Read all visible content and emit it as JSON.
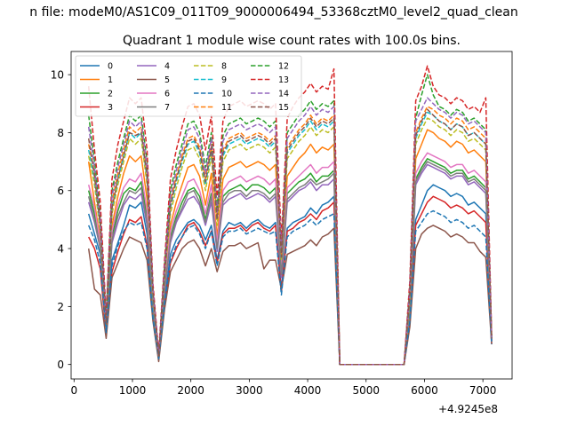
{
  "chart_data": {
    "type": "line",
    "suptitle": "n file: modeM0/AS1C09_011T09_9000006494_53368cztM0_level2_quad_clean",
    "title": "Quadrant 1 module wise count rates with 100.0s bins.",
    "xlabel": "",
    "ylabel": "",
    "x_offset_label": "+4.9245e8",
    "xlim": [
      -50,
      7500
    ],
    "ylim": [
      -0.5,
      10.8
    ],
    "xticks": [
      0,
      1000,
      2000,
      3000,
      4000,
      5000,
      6000,
      7000
    ],
    "yticks": [
      0,
      2,
      4,
      6,
      8,
      10
    ],
    "grid": false,
    "legend_position": "upper-left",
    "legend_columns": 4,
    "x": [
      250,
      350,
      450,
      550,
      650,
      750,
      850,
      950,
      1050,
      1150,
      1250,
      1350,
      1450,
      1550,
      1650,
      1750,
      1850,
      1950,
      2050,
      2150,
      2250,
      2350,
      2450,
      2550,
      2650,
      2750,
      2850,
      2950,
      3050,
      3150,
      3250,
      3350,
      3450,
      3550,
      3650,
      3750,
      3850,
      3950,
      4050,
      4150,
      4250,
      4350,
      4450,
      4550,
      4650,
      4750,
      4850,
      4950,
      5050,
      5150,
      5250,
      5350,
      5450,
      5550,
      5650,
      5750,
      5850,
      5950,
      6050,
      6150,
      6250,
      6350,
      6450,
      6550,
      6650,
      6750,
      6850,
      6950,
      7050,
      7150
    ],
    "series": [
      {
        "name": "0",
        "color": "#1f77b4",
        "style": "solid",
        "values": [
          5.2,
          4.5,
          3.8,
          1.2,
          3.6,
          4.2,
          4.8,
          5.5,
          5.4,
          5.6,
          4.5,
          1.8,
          0.2,
          2.2,
          3.8,
          4.3,
          4.6,
          4.9,
          5.0,
          4.8,
          4.3,
          4.8,
          3.6,
          4.6,
          4.9,
          4.8,
          4.9,
          4.7,
          4.9,
          5.0,
          4.8,
          4.7,
          4.9,
          2.6,
          4.7,
          4.9,
          5.0,
          5.1,
          5.4,
          5.2,
          5.5,
          5.6,
          5.8,
          0,
          0,
          0,
          0,
          0,
          0,
          0,
          0,
          0,
          0,
          0,
          0,
          1.6,
          5.0,
          5.5,
          6.0,
          6.2,
          6.1,
          6.0,
          5.8,
          5.9,
          5.8,
          5.5,
          5.6,
          5.4,
          5.2,
          0.8
        ]
      },
      {
        "name": "1",
        "color": "#ff7f0e",
        "style": "solid",
        "values": [
          7.0,
          5.6,
          4.3,
          1.3,
          4.8,
          5.8,
          6.6,
          7.2,
          7.0,
          7.2,
          5.7,
          2.2,
          0.3,
          2.8,
          4.8,
          5.6,
          6.2,
          6.8,
          6.9,
          6.5,
          5.5,
          6.6,
          4.4,
          6.4,
          6.8,
          6.9,
          7.0,
          6.8,
          6.9,
          7.0,
          6.9,
          6.7,
          6.9,
          3.3,
          6.5,
          6.8,
          7.1,
          7.3,
          7.6,
          7.3,
          7.5,
          7.4,
          7.6,
          0,
          0,
          0,
          0,
          0,
          0,
          0,
          0,
          0,
          0,
          0,
          0,
          2.2,
          7.1,
          7.6,
          8.1,
          8.0,
          7.8,
          7.7,
          7.5,
          7.7,
          7.6,
          7.3,
          7.4,
          7.2,
          7.0,
          0.9
        ]
      },
      {
        "name": "2",
        "color": "#2ca02c",
        "style": "solid",
        "values": [
          6.0,
          5.2,
          4.0,
          1.2,
          4.4,
          5.3,
          5.9,
          6.1,
          6.0,
          6.3,
          5.1,
          2.0,
          0.2,
          2.6,
          4.4,
          5.1,
          5.6,
          6.0,
          6.1,
          5.8,
          5.0,
          5.9,
          4.1,
          5.8,
          6.0,
          6.1,
          6.2,
          6.0,
          6.2,
          6.2,
          6.1,
          5.9,
          6.1,
          3.1,
          5.9,
          6.1,
          6.3,
          6.4,
          6.6,
          6.3,
          6.5,
          6.5,
          6.7,
          0,
          0,
          0,
          0,
          0,
          0,
          0,
          0,
          0,
          0,
          0,
          0,
          1.9,
          6.4,
          6.8,
          7.1,
          7.0,
          6.9,
          6.8,
          6.6,
          6.7,
          6.7,
          6.4,
          6.5,
          6.3,
          6.1,
          0.8
        ]
      },
      {
        "name": "3",
        "color": "#d62728",
        "style": "solid",
        "values": [
          4.4,
          4.0,
          3.3,
          1.0,
          3.2,
          3.9,
          4.5,
          5.0,
          4.9,
          5.1,
          4.1,
          1.6,
          0.2,
          2.0,
          3.5,
          4.0,
          4.4,
          4.8,
          4.9,
          4.6,
          4.1,
          4.6,
          3.5,
          4.5,
          4.7,
          4.7,
          4.8,
          4.6,
          4.8,
          4.9,
          4.7,
          4.6,
          4.8,
          2.5,
          4.6,
          4.7,
          4.9,
          5.0,
          5.2,
          5.0,
          5.3,
          5.4,
          5.6,
          0,
          0,
          0,
          0,
          0,
          0,
          0,
          0,
          0,
          0,
          0,
          0,
          1.5,
          4.8,
          5.2,
          5.6,
          5.8,
          5.7,
          5.6,
          5.4,
          5.5,
          5.4,
          5.2,
          5.3,
          5.1,
          4.9,
          0.7
        ]
      },
      {
        "name": "4",
        "color": "#9467bd",
        "style": "solid",
        "values": [
          5.6,
          4.9,
          4.0,
          1.2,
          4.2,
          4.9,
          5.5,
          5.8,
          5.7,
          5.9,
          4.8,
          1.9,
          0.2,
          2.5,
          4.2,
          4.9,
          5.3,
          5.7,
          5.8,
          5.5,
          4.8,
          5.6,
          3.9,
          5.5,
          5.7,
          5.8,
          5.9,
          5.7,
          5.8,
          5.9,
          5.8,
          5.6,
          5.8,
          3.0,
          5.6,
          5.8,
          6.0,
          6.1,
          6.3,
          6.0,
          6.2,
          6.2,
          6.4,
          0,
          0,
          0,
          0,
          0,
          0,
          0,
          0,
          0,
          0,
          0,
          0,
          1.8,
          6.2,
          6.6,
          6.9,
          6.8,
          6.7,
          6.6,
          6.4,
          6.5,
          6.5,
          6.2,
          6.3,
          6.1,
          5.9,
          0.8
        ]
      },
      {
        "name": "5",
        "color": "#8c564b",
        "style": "solid",
        "values": [
          4.0,
          2.6,
          2.4,
          0.9,
          3.0,
          3.5,
          4.0,
          4.4,
          4.3,
          4.2,
          3.6,
          1.5,
          0.1,
          1.9,
          3.2,
          3.6,
          4.0,
          4.2,
          4.3,
          4.0,
          3.4,
          4.0,
          3.2,
          3.9,
          4.1,
          4.1,
          4.2,
          4.0,
          4.1,
          4.2,
          3.3,
          3.6,
          3.6,
          2.6,
          3.8,
          3.9,
          4.0,
          4.1,
          4.3,
          4.1,
          4.4,
          4.5,
          4.7,
          0,
          0,
          0,
          0,
          0,
          0,
          0,
          0,
          0,
          0,
          0,
          0,
          1.3,
          4.0,
          4.5,
          4.7,
          4.8,
          4.7,
          4.6,
          4.4,
          4.5,
          4.4,
          4.2,
          4.2,
          3.9,
          3.7,
          0.7
        ]
      },
      {
        "name": "6",
        "color": "#e377c2",
        "style": "solid",
        "values": [
          6.2,
          5.4,
          4.2,
          1.2,
          4.6,
          5.5,
          6.1,
          6.4,
          6.3,
          6.6,
          5.3,
          2.0,
          0.3,
          2.7,
          4.6,
          5.3,
          5.8,
          6.3,
          6.4,
          6.0,
          5.2,
          6.2,
          4.2,
          6.0,
          6.3,
          6.4,
          6.5,
          6.3,
          6.4,
          6.5,
          6.4,
          6.2,
          6.4,
          3.2,
          6.1,
          6.3,
          6.5,
          6.7,
          6.9,
          6.6,
          6.8,
          6.8,
          7.0,
          0,
          0,
          0,
          0,
          0,
          0,
          0,
          0,
          0,
          0,
          0,
          0,
          2.0,
          6.6,
          7.0,
          7.3,
          7.2,
          7.1,
          7.0,
          6.8,
          6.9,
          6.9,
          6.6,
          6.7,
          6.5,
          6.3,
          0.8
        ]
      },
      {
        "name": "7",
        "color": "#7f7f7f",
        "style": "solid",
        "values": [
          5.8,
          5.0,
          4.0,
          1.2,
          4.3,
          5.1,
          5.6,
          6.0,
          5.9,
          6.1,
          4.9,
          1.9,
          0.2,
          2.6,
          4.3,
          5.0,
          5.4,
          5.9,
          6.0,
          5.6,
          4.9,
          5.8,
          4.0,
          5.6,
          5.9,
          6.0,
          6.0,
          5.8,
          6.0,
          6.0,
          5.9,
          5.7,
          5.9,
          3.1,
          5.7,
          5.9,
          6.1,
          6.2,
          6.4,
          6.2,
          6.3,
          6.4,
          6.6,
          0,
          0,
          0,
          0,
          0,
          0,
          0,
          0,
          0,
          0,
          0,
          0,
          1.9,
          6.3,
          6.7,
          7.0,
          6.9,
          6.8,
          6.7,
          6.5,
          6.6,
          6.6,
          6.3,
          6.4,
          6.2,
          6.0,
          0.8
        ]
      },
      {
        "name": "8",
        "color": "#bcbd22",
        "style": "dashed",
        "values": [
          7.2,
          6.2,
          4.6,
          1.4,
          5.2,
          6.2,
          7.0,
          7.8,
          7.6,
          7.8,
          6.2,
          2.4,
          0.3,
          3.0,
          5.2,
          6.1,
          6.8,
          7.4,
          7.5,
          7.1,
          6.0,
          7.2,
          4.8,
          7.0,
          7.4,
          7.5,
          7.6,
          7.4,
          7.5,
          7.6,
          7.5,
          7.3,
          7.5,
          3.6,
          7.1,
          7.4,
          7.7,
          7.9,
          8.2,
          7.9,
          8.1,
          8.0,
          8.2,
          0,
          0,
          0,
          0,
          0,
          0,
          0,
          0,
          0,
          0,
          0,
          0,
          2.3,
          7.6,
          8.1,
          8.5,
          8.4,
          8.2,
          8.1,
          7.9,
          8.1,
          8.0,
          7.7,
          7.8,
          7.6,
          7.4,
          0.9
        ]
      },
      {
        "name": "9",
        "color": "#17becf",
        "style": "dashed",
        "values": [
          7.4,
          6.4,
          4.8,
          1.4,
          5.4,
          6.4,
          7.2,
          8.0,
          7.8,
          8.0,
          6.4,
          2.4,
          0.3,
          3.1,
          5.4,
          6.3,
          7.0,
          7.6,
          7.7,
          7.3,
          6.2,
          7.4,
          5.0,
          7.2,
          7.6,
          7.7,
          7.8,
          7.6,
          7.7,
          7.8,
          7.7,
          7.5,
          7.7,
          3.7,
          7.3,
          7.6,
          7.9,
          8.1,
          8.4,
          8.1,
          8.3,
          8.2,
          8.4,
          0,
          0,
          0,
          0,
          0,
          0,
          0,
          0,
          0,
          0,
          0,
          0,
          2.4,
          7.8,
          8.3,
          8.7,
          8.6,
          8.4,
          8.3,
          8.1,
          8.3,
          8.2,
          7.9,
          8.0,
          7.8,
          7.6,
          0.9
        ]
      },
      {
        "name": "10",
        "color": "#1f77b4",
        "style": "dashed",
        "values": [
          4.8,
          4.3,
          3.5,
          1.1,
          3.4,
          4.1,
          4.6,
          4.9,
          4.8,
          4.9,
          4.0,
          1.6,
          0.2,
          2.1,
          3.6,
          4.1,
          4.4,
          4.7,
          4.8,
          4.5,
          4.0,
          4.6,
          3.4,
          4.4,
          4.6,
          4.6,
          4.7,
          4.5,
          4.6,
          4.7,
          4.6,
          4.5,
          4.6,
          2.4,
          4.4,
          4.6,
          4.7,
          4.8,
          5.0,
          4.8,
          5.0,
          5.1,
          5.2,
          0,
          0,
          0,
          0,
          0,
          0,
          0,
          0,
          0,
          0,
          0,
          0,
          1.5,
          4.6,
          4.9,
          5.2,
          5.3,
          5.2,
          5.1,
          4.9,
          5.0,
          4.9,
          4.7,
          4.8,
          4.6,
          4.4,
          0.7
        ]
      },
      {
        "name": "11",
        "color": "#ff7f0e",
        "style": "dashed",
        "values": [
          7.6,
          6.6,
          4.9,
          1.5,
          5.6,
          6.6,
          7.4,
          8.2,
          8.0,
          8.2,
          6.6,
          2.5,
          0.3,
          3.2,
          5.6,
          6.5,
          7.2,
          7.8,
          7.9,
          7.5,
          6.4,
          7.6,
          5.1,
          7.4,
          7.8,
          7.9,
          8.0,
          7.8,
          7.9,
          8.0,
          7.9,
          7.7,
          7.9,
          3.8,
          7.5,
          7.8,
          8.1,
          8.3,
          8.6,
          8.3,
          8.5,
          8.4,
          8.6,
          0,
          0,
          0,
          0,
          0,
          0,
          0,
          0,
          0,
          0,
          0,
          0,
          2.5,
          8.0,
          8.5,
          8.9,
          8.8,
          8.6,
          8.5,
          8.3,
          8.5,
          8.4,
          8.1,
          8.2,
          8.0,
          7.8,
          0.9
        ]
      },
      {
        "name": "12",
        "color": "#2ca02c",
        "style": "dashed",
        "values": [
          8.6,
          7.0,
          5.2,
          1.6,
          6.0,
          7.0,
          7.8,
          8.6,
          8.4,
          8.6,
          7.0,
          2.6,
          0.3,
          3.4,
          6.0,
          6.9,
          7.6,
          8.3,
          8.4,
          8.0,
          6.8,
          8.0,
          5.4,
          7.9,
          8.3,
          8.4,
          8.5,
          8.3,
          8.4,
          8.5,
          8.4,
          8.2,
          8.4,
          4.0,
          8.0,
          8.3,
          8.6,
          8.8,
          9.1,
          8.8,
          9.0,
          8.9,
          9.1,
          0,
          0,
          0,
          0,
          0,
          0,
          0,
          0,
          0,
          0,
          0,
          0,
          2.7,
          8.5,
          9.3,
          10.0,
          9.3,
          8.9,
          8.8,
          8.6,
          8.8,
          8.7,
          8.4,
          8.5,
          8.3,
          8.1,
          0.9
        ]
      },
      {
        "name": "13",
        "color": "#d62728",
        "style": "dashed",
        "values": [
          9.6,
          7.4,
          5.6,
          1.7,
          6.4,
          7.6,
          8.4,
          9.2,
          9.0,
          9.2,
          7.4,
          2.8,
          0.4,
          3.6,
          6.4,
          7.4,
          8.2,
          8.9,
          9.0,
          8.6,
          7.4,
          8.6,
          5.8,
          8.4,
          8.9,
          9.0,
          9.1,
          8.9,
          9.0,
          9.1,
          9.0,
          8.8,
          9.0,
          4.3,
          8.5,
          8.9,
          9.2,
          9.4,
          9.7,
          9.4,
          9.6,
          9.5,
          10.2,
          0,
          0,
          0,
          0,
          0,
          0,
          0,
          0,
          0,
          0,
          0,
          0,
          2.9,
          9.1,
          9.6,
          10.3,
          9.6,
          9.3,
          9.2,
          9.0,
          9.2,
          9.1,
          8.8,
          8.9,
          8.7,
          9.2,
          1.0
        ]
      },
      {
        "name": "14",
        "color": "#9467bd",
        "style": "dashed",
        "values": [
          8.2,
          6.8,
          5.0,
          1.5,
          5.8,
          6.8,
          7.6,
          8.4,
          8.2,
          8.4,
          6.8,
          2.6,
          0.3,
          3.3,
          5.8,
          6.7,
          7.4,
          8.1,
          8.2,
          7.8,
          6.6,
          7.8,
          5.2,
          7.7,
          8.1,
          8.2,
          8.3,
          8.1,
          8.2,
          8.3,
          8.2,
          8.0,
          8.2,
          3.9,
          7.8,
          8.1,
          8.4,
          8.6,
          8.9,
          8.6,
          8.8,
          8.7,
          8.9,
          0,
          0,
          0,
          0,
          0,
          0,
          0,
          0,
          0,
          0,
          0,
          0,
          2.6,
          8.4,
          8.8,
          9.2,
          9.0,
          8.8,
          8.7,
          8.5,
          8.7,
          8.6,
          8.3,
          8.4,
          8.2,
          8.0,
          0.9
        ]
      },
      {
        "name": "15",
        "color": "#8c564b",
        "style": "dashed",
        "values": [
          7.8,
          6.5,
          4.8,
          1.4,
          5.4,
          6.4,
          7.2,
          8.0,
          7.9,
          8.0,
          6.5,
          2.5,
          0.3,
          3.1,
          5.5,
          6.4,
          7.1,
          7.7,
          7.8,
          7.4,
          6.3,
          7.5,
          5.0,
          7.3,
          7.7,
          7.8,
          7.9,
          7.7,
          7.8,
          7.9,
          7.8,
          7.6,
          7.8,
          3.7,
          7.4,
          7.7,
          8.0,
          8.2,
          8.5,
          8.2,
          8.4,
          8.3,
          8.5,
          0,
          0,
          0,
          0,
          0,
          0,
          0,
          0,
          0,
          0,
          0,
          0,
          2.4,
          7.9,
          8.4,
          8.8,
          8.6,
          8.4,
          8.3,
          8.1,
          8.3,
          8.2,
          7.9,
          8.0,
          7.8,
          7.6,
          0.9
        ]
      }
    ]
  }
}
